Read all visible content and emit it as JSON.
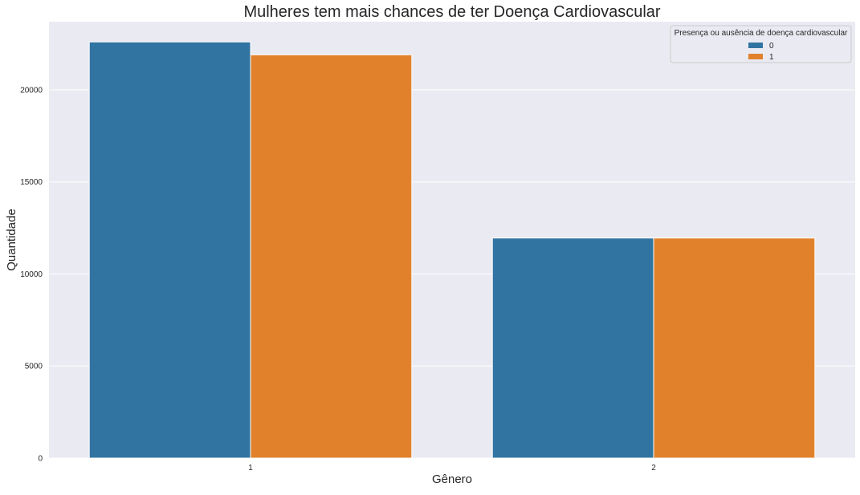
{
  "chart_data": {
    "type": "bar",
    "title": "Mulheres tem mais chances de ter Doença Cardiovascular",
    "xlabel": "Gênero",
    "ylabel": "Quantidade",
    "categories": [
      "1",
      "2"
    ],
    "series": [
      {
        "name": "0",
        "values": [
          22600,
          11950
        ],
        "color": "#3274a1"
      },
      {
        "name": "1",
        "values": [
          21900,
          11950
        ],
        "color": "#e1812c"
      }
    ],
    "ylim": [
      0,
      23700
    ],
    "yticks": [
      0,
      5000,
      10000,
      15000,
      20000
    ],
    "grid": true,
    "legend": {
      "title": "Presença ou ausência de doença cardiovascular",
      "placement": "top-right"
    },
    "colors": {
      "plot_background": "#eaeaf2",
      "grid": "#ffffff",
      "text": "#262626"
    }
  }
}
